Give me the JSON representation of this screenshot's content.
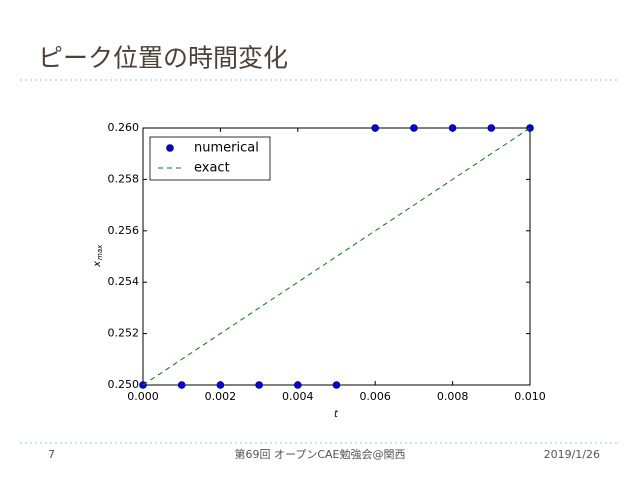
{
  "slide": {
    "title": "ピーク位置の時間変化",
    "page_number": "7",
    "footer": "第69回 オープンCAE勉強会@関西",
    "date": "2019/1/26"
  },
  "chart_data": {
    "type": "scatter",
    "xlabel": "t",
    "ylabel": "x",
    "ylabel_sub": "max",
    "series": [
      {
        "name": "numerical",
        "mode": "markers",
        "color": "#0000ff",
        "x": [
          0,
          0.001,
          0.002,
          0.003,
          0.004,
          0.005,
          0.006,
          0.007,
          0.008,
          0.009,
          0.01
        ],
        "values": [
          0.25,
          0.25,
          0.25,
          0.25,
          0.25,
          0.25,
          0.26,
          0.26,
          0.26,
          0.26,
          0.26
        ]
      },
      {
        "name": "exact",
        "mode": "dashed",
        "color": "#008000",
        "x": [
          0,
          0.01
        ],
        "values": [
          0.25,
          0.26
        ]
      }
    ],
    "xlim": [
      0,
      0.01
    ],
    "ylim": [
      0.25,
      0.26
    ],
    "xticks": [
      {
        "value": 0,
        "label": "0.000"
      },
      {
        "value": 0.002,
        "label": "0.002"
      },
      {
        "value": 0.004,
        "label": "0.004"
      },
      {
        "value": 0.006,
        "label": "0.006"
      },
      {
        "value": 0.008,
        "label": "0.008"
      },
      {
        "value": 0.01,
        "label": "0.010"
      }
    ],
    "yticks": [
      {
        "value": 0.25,
        "label": "0.250"
      },
      {
        "value": 0.252,
        "label": "0.252"
      },
      {
        "value": 0.254,
        "label": "0.254"
      },
      {
        "value": 0.256,
        "label": "0.256"
      },
      {
        "value": 0.258,
        "label": "0.258"
      },
      {
        "value": 0.26,
        "label": "0.260"
      }
    ],
    "legend": "upper left"
  }
}
